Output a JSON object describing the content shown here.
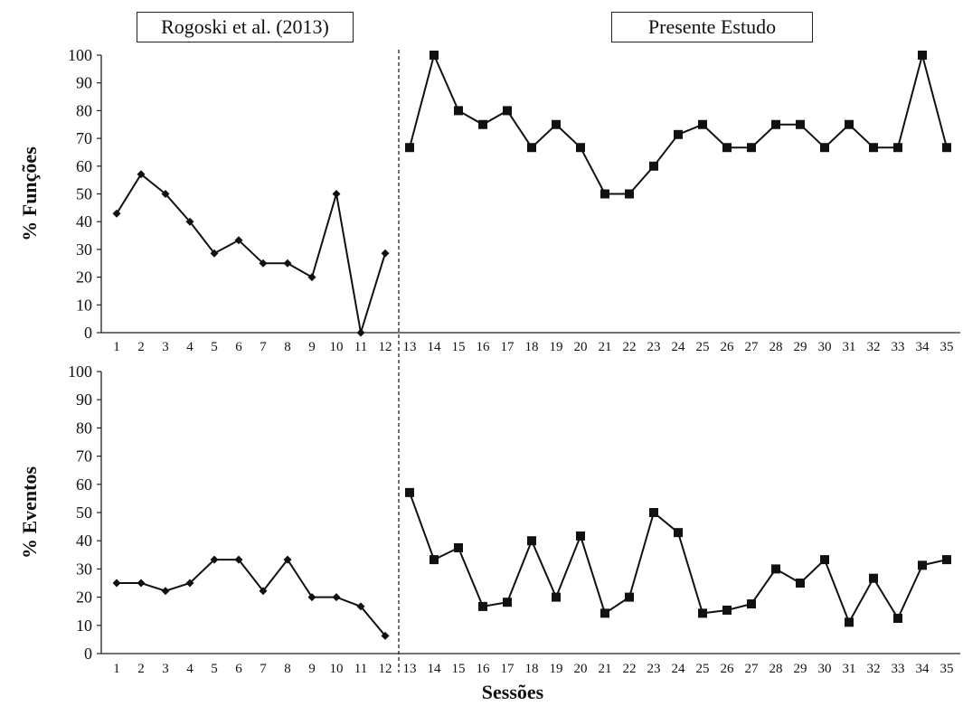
{
  "headers": {
    "left": "Rogoski et al. (2013)",
    "right": "Presente Estudo"
  },
  "chart_data": [
    {
      "type": "line",
      "ylabel": "% Funções",
      "xlabel": "",
      "ylim": [
        0,
        100
      ],
      "yticks": [
        0,
        10,
        20,
        30,
        40,
        50,
        60,
        70,
        80,
        90,
        100
      ],
      "x": [
        1,
        2,
        3,
        4,
        5,
        6,
        7,
        8,
        9,
        10,
        11,
        12,
        13,
        14,
        15,
        16,
        17,
        18,
        19,
        20,
        21,
        22,
        23,
        24,
        25,
        26,
        27,
        28,
        29,
        30,
        31,
        32,
        33,
        34,
        35
      ],
      "phase_divider_after": 12,
      "series": [
        {
          "marker": "diamond",
          "x": [
            1,
            2,
            3,
            4,
            5,
            6,
            7,
            8,
            9,
            10,
            11,
            12
          ],
          "values": [
            42.9,
            57.1,
            50,
            40,
            28.6,
            33.3,
            25,
            25,
            20,
            50,
            0,
            28.6
          ]
        },
        {
          "marker": "square",
          "x": [
            13,
            14,
            15,
            16,
            17,
            18,
            19,
            20,
            21,
            22,
            23,
            24,
            25,
            26,
            27,
            28,
            29,
            30,
            31,
            32,
            33,
            34,
            35
          ],
          "values": [
            66.7,
            100,
            80,
            75,
            80,
            66.7,
            75,
            66.7,
            50,
            50,
            60,
            71.4,
            75,
            66.7,
            66.7,
            75,
            75,
            66.7,
            75,
            66.7,
            66.7,
            100,
            66.7
          ]
        }
      ]
    },
    {
      "type": "line",
      "ylabel": "% Eventos",
      "xlabel": "Sessões",
      "ylim": [
        0,
        100
      ],
      "yticks": [
        0,
        10,
        20,
        30,
        40,
        50,
        60,
        70,
        80,
        90,
        100
      ],
      "x": [
        1,
        2,
        3,
        4,
        5,
        6,
        7,
        8,
        9,
        10,
        11,
        12,
        13,
        14,
        15,
        16,
        17,
        18,
        19,
        20,
        21,
        22,
        23,
        24,
        25,
        26,
        27,
        28,
        29,
        30,
        31,
        32,
        33,
        34,
        35
      ],
      "phase_divider_after": 12,
      "series": [
        {
          "marker": "diamond",
          "x": [
            1,
            2,
            3,
            4,
            5,
            6,
            7,
            8,
            9,
            10,
            11,
            12
          ],
          "values": [
            25,
            25,
            22.2,
            25,
            33.3,
            33.3,
            22.2,
            33.3,
            20,
            20,
            16.7,
            6.3
          ]
        },
        {
          "marker": "square",
          "x": [
            13,
            14,
            15,
            16,
            17,
            18,
            19,
            20,
            21,
            22,
            23,
            24,
            25,
            26,
            27,
            28,
            29,
            30,
            31,
            32,
            33,
            34,
            35
          ],
          "values": [
            57.1,
            33.3,
            37.5,
            16.7,
            18.2,
            40,
            20,
            41.7,
            14.3,
            20,
            50,
            42.9,
            14.3,
            15.4,
            17.6,
            30,
            25,
            33.3,
            11.1,
            26.7,
            12.5,
            31.3,
            33.3
          ]
        }
      ]
    }
  ]
}
